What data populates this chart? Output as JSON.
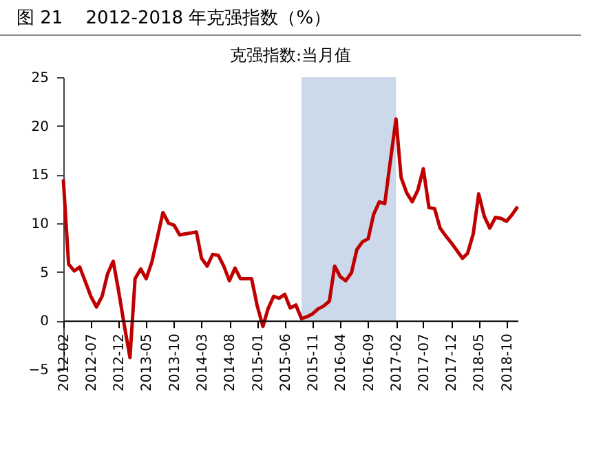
{
  "chart_data": {
    "type": "line",
    "title": "图 21    2012-2018 年克强指数（%）",
    "subtitle": "克强指数:当月值",
    "x": [
      "2012-02",
      "2012-03",
      "2012-04",
      "2012-05",
      "2012-06",
      "2012-07",
      "2012-08",
      "2012-09",
      "2012-10",
      "2012-11",
      "2012-12",
      "2013-01",
      "2013-02",
      "2013-03",
      "2013-04",
      "2013-05",
      "2013-06",
      "2013-07",
      "2013-08",
      "2013-09",
      "2013-10",
      "2013-11",
      "2013-12",
      "2014-01",
      "2014-02",
      "2014-03",
      "2014-04",
      "2014-05",
      "2014-06",
      "2014-07",
      "2014-08",
      "2014-09",
      "2014-10",
      "2014-11",
      "2014-12",
      "2015-01",
      "2015-02",
      "2015-03",
      "2015-04",
      "2015-05",
      "2015-06",
      "2015-07",
      "2015-08",
      "2015-09",
      "2015-10",
      "2015-11",
      "2015-12",
      "2016-01",
      "2016-02",
      "2016-03",
      "2016-04",
      "2016-05",
      "2016-06",
      "2016-07",
      "2016-08",
      "2016-09",
      "2016-10",
      "2016-11",
      "2016-12",
      "2017-01",
      "2017-02",
      "2017-03",
      "2017-04",
      "2017-05",
      "2017-06",
      "2017-07",
      "2017-08",
      "2017-09",
      "2017-10",
      "2017-11",
      "2017-12",
      "2018-01",
      "2018-02",
      "2018-03",
      "2018-04",
      "2018-05",
      "2018-06",
      "2018-07",
      "2018-08",
      "2018-09",
      "2018-10",
      "2018-11",
      "2018-12"
    ],
    "series": [
      {
        "color": "#c00000",
        "values": [
          14.5,
          5.8,
          5.1,
          5.5,
          4.0,
          2.5,
          1.4,
          2.5,
          4.8,
          6.1,
          3.0,
          -0.5,
          -3.8,
          4.3,
          5.3,
          4.3,
          6.0,
          8.5,
          11.1,
          10.0,
          9.8,
          8.8,
          8.9,
          9.0,
          9.1,
          6.4,
          5.6,
          6.8,
          6.7,
          5.6,
          4.1,
          5.4,
          4.3,
          4.3,
          4.3,
          1.5,
          -0.6,
          1.2,
          2.5,
          2.3,
          2.7,
          1.3,
          1.6,
          0.2,
          0.4,
          0.7,
          1.2,
          1.5,
          2.0,
          5.6,
          4.5,
          4.1,
          4.9,
          7.3,
          8.1,
          8.4,
          10.9,
          12.2,
          12.0,
          16.4,
          20.7,
          14.7,
          13.1,
          12.2,
          13.4,
          15.6,
          11.6,
          11.5,
          9.5,
          8.7,
          8.0,
          7.2,
          6.4,
          6.9,
          8.9,
          13.0,
          10.7,
          9.5,
          10.6,
          10.5,
          10.2,
          10.9,
          11.7
        ]
      }
    ],
    "xlim": [
      "2012-02",
      "2018-12"
    ],
    "xticks": [
      "2012-02",
      "2012-07",
      "2012-12",
      "2013-05",
      "2013-10",
      "2014-03",
      "2014-08",
      "2015-01",
      "2015-06",
      "2015-11",
      "2016-04",
      "2016-09",
      "2017-02",
      "2017-07",
      "2017-12",
      "2018-05",
      "2018-10"
    ],
    "ylim": [
      -5,
      25
    ],
    "yticks": [
      -5,
      0,
      5,
      10,
      15,
      20,
      25
    ],
    "bands": [
      {
        "axis": "x",
        "from": "2015-09",
        "to": "2017-02",
        "color": "#ccd9ea"
      }
    ],
    "grid": false
  }
}
